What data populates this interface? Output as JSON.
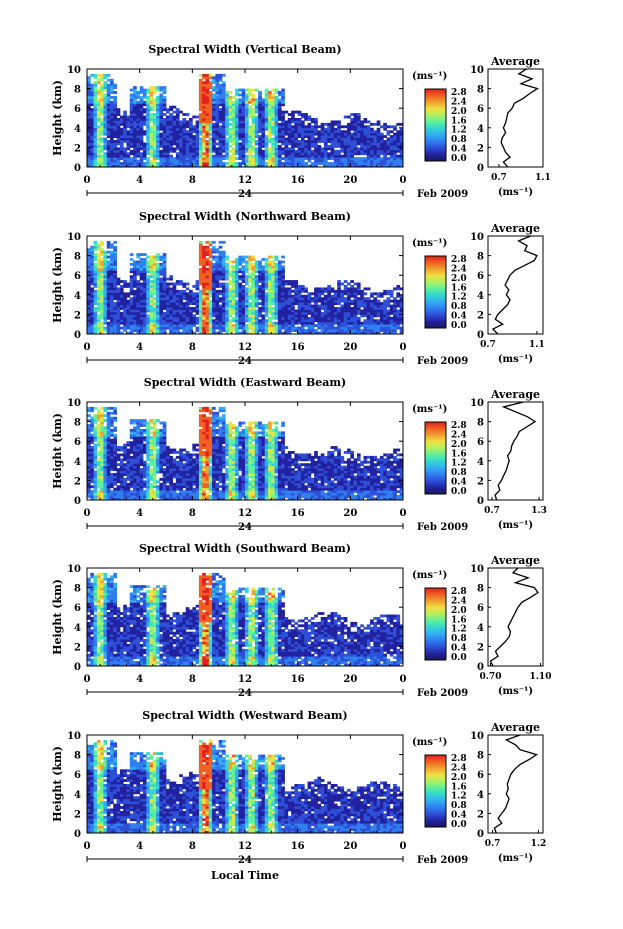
{
  "figure": {
    "xlabel": "Local Time",
    "date_label": "Feb 2009",
    "day_label": "24",
    "unit_label": "(ms⁻¹)",
    "colorbar_ticks": [
      "2.8",
      "2.4",
      "2.0",
      "1.6",
      "1.2",
      "0.8",
      "0.4",
      "0.0"
    ],
    "colorscale": [
      "#1a1a60",
      "#2222a0",
      "#2e4fd8",
      "#2f7ff0",
      "#33aef0",
      "#33d6d0",
      "#5ef09a",
      "#b0f060",
      "#f0e040",
      "#f0a030",
      "#f06020",
      "#e02020"
    ]
  },
  "chart_data": [
    {
      "type": "heatmap",
      "title": "Spectral Width (Vertical Beam)",
      "ylabel": "Height (km)",
      "xlabel": "",
      "x_ticks": [
        "0",
        "4",
        "8",
        "12",
        "16",
        "20",
        "0"
      ],
      "y_ticks": [
        "0",
        "2",
        "4",
        "6",
        "8",
        "10"
      ],
      "xlim": [
        0,
        24
      ],
      "ylim": [
        0,
        10
      ],
      "colorbar": {
        "unit": "(ms⁻¹)",
        "range": [
          0.0,
          3.0
        ]
      },
      "bands": [
        1,
        5,
        9,
        11,
        12.5,
        14
      ],
      "profile": {
        "title": "Average",
        "xlabel": "(ms⁻¹)",
        "x_ticks": [
          "0.7",
          "1.1"
        ],
        "xlim": [
          0.6,
          1.1
        ],
        "ylim": [
          0,
          10
        ],
        "heights": [
          0,
          0.5,
          1,
          1.5,
          2,
          2.5,
          3,
          3.5,
          4,
          4.5,
          5,
          5.5,
          6,
          6.5,
          7,
          7.5,
          8,
          8.5,
          9,
          9.5,
          10
        ],
        "values": [
          0.78,
          0.74,
          0.8,
          0.76,
          0.74,
          0.72,
          0.73,
          0.76,
          0.74,
          0.76,
          0.77,
          0.78,
          0.82,
          0.84,
          0.92,
          0.98,
          1.05,
          0.9,
          1.0,
          0.88,
          0.95
        ]
      }
    },
    {
      "type": "heatmap",
      "title": "Spectral Width (Northward Beam)",
      "ylabel": "Height (km)",
      "xlabel": "",
      "x_ticks": [
        "0",
        "4",
        "8",
        "12",
        "16",
        "20",
        "0"
      ],
      "y_ticks": [
        "0",
        "2",
        "4",
        "6",
        "8",
        "10"
      ],
      "xlim": [
        0,
        24
      ],
      "ylim": [
        0,
        10
      ],
      "colorbar": {
        "unit": "(ms⁻¹)",
        "range": [
          0.0,
          3.0
        ]
      },
      "bands": [
        1,
        5,
        9,
        11,
        12.5,
        14
      ],
      "profile": {
        "title": "Average",
        "xlabel": "(ms⁻¹)",
        "x_ticks": [
          "0.7",
          "1.1"
        ],
        "xlim": [
          0.7,
          1.15
        ],
        "ylim": [
          0,
          10
        ],
        "heights": [
          0,
          0.5,
          1,
          1.5,
          2,
          2.5,
          3,
          3.5,
          4,
          4.5,
          5,
          5.5,
          6,
          6.5,
          7,
          7.5,
          8,
          8.5,
          9,
          9.5,
          10
        ],
        "values": [
          0.78,
          0.74,
          0.82,
          0.76,
          0.78,
          0.82,
          0.86,
          0.88,
          0.85,
          0.87,
          0.84,
          0.86,
          0.88,
          0.92,
          1.0,
          1.08,
          1.1,
          1.0,
          1.02,
          0.95,
          1.05
        ]
      }
    },
    {
      "type": "heatmap",
      "title": "Spectral Width (Eastward Beam)",
      "ylabel": "Height (km)",
      "xlabel": "",
      "x_ticks": [
        "0",
        "4",
        "8",
        "12",
        "16",
        "20",
        "0"
      ],
      "y_ticks": [
        "0",
        "2",
        "4",
        "6",
        "8",
        "10"
      ],
      "xlim": [
        0,
        24
      ],
      "ylim": [
        0,
        10
      ],
      "colorbar": {
        "unit": "(ms⁻¹)",
        "range": [
          0.0,
          3.0
        ]
      },
      "bands": [
        1,
        5,
        9,
        11,
        12.5,
        14
      ],
      "profile": {
        "title": "Average",
        "xlabel": "(ms⁻¹)",
        "x_ticks": [
          "0.7",
          "1.3"
        ],
        "xlim": [
          0.65,
          1.35
        ],
        "ylim": [
          0,
          10
        ],
        "heights": [
          0,
          0.5,
          1,
          1.5,
          2,
          2.5,
          3,
          3.5,
          4,
          4.5,
          5,
          5.5,
          6,
          6.5,
          7,
          7.5,
          8,
          8.5,
          9,
          9.5,
          10
        ],
        "values": [
          0.76,
          0.74,
          0.8,
          0.78,
          0.82,
          0.85,
          0.88,
          0.9,
          0.92,
          0.9,
          0.94,
          0.95,
          0.98,
          1.02,
          1.05,
          1.15,
          1.25,
          1.15,
          1.0,
          0.85,
          1.1
        ]
      }
    },
    {
      "type": "heatmap",
      "title": "Spectral Width (Southward Beam)",
      "ylabel": "Height (km)",
      "xlabel": "",
      "x_ticks": [
        "0",
        "4",
        "8",
        "12",
        "16",
        "20",
        "0"
      ],
      "y_ticks": [
        "0",
        "2",
        "4",
        "6",
        "8",
        "10"
      ],
      "xlim": [
        0,
        24
      ],
      "ylim": [
        0,
        10
      ],
      "colorbar": {
        "unit": "(ms⁻¹)",
        "range": [
          0.0,
          3.0
        ]
      },
      "bands": [
        1,
        5,
        9,
        11,
        12.5,
        14
      ],
      "profile": {
        "title": "Average",
        "xlabel": "(ms⁻¹)",
        "x_ticks": [
          "0.70",
          "1.10"
        ],
        "xlim": [
          0.68,
          1.12
        ],
        "ylim": [
          0,
          10
        ],
        "heights": [
          0,
          0.5,
          1,
          1.5,
          2,
          2.5,
          3,
          3.5,
          4,
          4.5,
          5,
          5.5,
          6,
          6.5,
          7,
          7.5,
          8,
          8.5,
          9,
          9.5,
          10
        ],
        "values": [
          0.72,
          0.7,
          0.76,
          0.74,
          0.78,
          0.82,
          0.85,
          0.86,
          0.84,
          0.86,
          0.88,
          0.9,
          0.92,
          0.95,
          1.02,
          1.08,
          1.05,
          0.9,
          1.0,
          0.88,
          0.92
        ]
      }
    },
    {
      "type": "heatmap",
      "title": "Spectral Width (Westward Beam)",
      "ylabel": "Height (km)",
      "xlabel": "Local Time",
      "x_ticks": [
        "0",
        "4",
        "8",
        "12",
        "16",
        "20",
        "0"
      ],
      "y_ticks": [
        "0",
        "2",
        "4",
        "6",
        "8",
        "10"
      ],
      "xlim": [
        0,
        24
      ],
      "ylim": [
        0,
        10
      ],
      "colorbar": {
        "unit": "(ms⁻¹)",
        "range": [
          0.0,
          3.0
        ]
      },
      "bands": [
        1,
        5,
        9,
        11,
        12.5,
        14
      ],
      "profile": {
        "title": "Average",
        "xlabel": "(ms⁻¹)",
        "x_ticks": [
          "0.7",
          "1.2"
        ],
        "xlim": [
          0.65,
          1.25
        ],
        "ylim": [
          0,
          10
        ],
        "heights": [
          0,
          0.5,
          1,
          1.5,
          2,
          2.5,
          3,
          3.5,
          4,
          4.5,
          5,
          5.5,
          6,
          6.5,
          7,
          7.5,
          8,
          8.5,
          9,
          9.5,
          10
        ],
        "values": [
          0.74,
          0.72,
          0.8,
          0.76,
          0.8,
          0.84,
          0.86,
          0.88,
          0.85,
          0.87,
          0.86,
          0.88,
          0.9,
          0.94,
          1.0,
          1.1,
          1.18,
          1.0,
          0.95,
          0.85,
          1.0
        ]
      }
    }
  ]
}
